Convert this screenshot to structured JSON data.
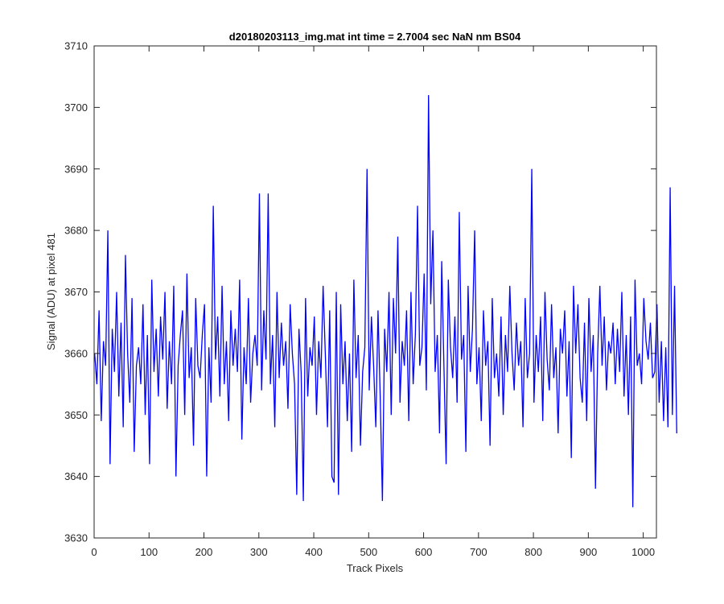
{
  "chart_data": {
    "type": "line",
    "title": "d20180203113_img.mat int time = 2.7004 sec  NaN nm BS04",
    "xlabel": "Track Pixels",
    "ylabel": "Signal (ADU) at pixel 481",
    "xlim": [
      0,
      1024
    ],
    "ylim": [
      3630,
      3710
    ],
    "xticks": [
      0,
      100,
      200,
      300,
      400,
      500,
      600,
      700,
      800,
      900,
      1000
    ],
    "yticks": [
      3630,
      3640,
      3650,
      3660,
      3670,
      3680,
      3690,
      3700,
      3710
    ],
    "grid": false,
    "series": [
      {
        "color": "#0000ff",
        "x_start": 1,
        "x_step": 4,
        "values": [
          3660,
          3655,
          3667,
          3649,
          3662,
          3658,
          3680,
          3642,
          3664,
          3657,
          3670,
          3653,
          3665,
          3648,
          3676,
          3660,
          3652,
          3669,
          3644,
          3658,
          3661,
          3655,
          3668,
          3650,
          3663,
          3642,
          3672,
          3657,
          3664,
          3653,
          3666,
          3659,
          3670,
          3651,
          3662,
          3655,
          3671,
          3640,
          3658,
          3663,
          3667,
          3650,
          3673,
          3656,
          3661,
          3645,
          3669,
          3658,
          3656,
          3663,
          3668,
          3640,
          3661,
          3652,
          3684,
          3659,
          3666,
          3653,
          3671,
          3655,
          3662,
          3649,
          3667,
          3658,
          3664,
          3657,
          3672,
          3646,
          3661,
          3655,
          3669,
          3652,
          3660,
          3663,
          3658,
          3686,
          3654,
          3667,
          3659,
          3686,
          3655,
          3663,
          3648,
          3670,
          3656,
          3665,
          3658,
          3662,
          3651,
          3668,
          3660,
          3655,
          3637,
          3664,
          3657,
          3636,
          3669,
          3653,
          3661,
          3658,
          3666,
          3650,
          3662,
          3656,
          3671,
          3660,
          3648,
          3667,
          3640,
          3639,
          3670,
          3637,
          3668,
          3655,
          3662,
          3649,
          3660,
          3644,
          3672,
          3656,
          3663,
          3645,
          3657,
          3661,
          3690,
          3654,
          3666,
          3658,
          3648,
          3667,
          3653,
          3636,
          3664,
          3657,
          3670,
          3650,
          3669,
          3660,
          3679,
          3652,
          3662,
          3658,
          3667,
          3649,
          3670,
          3655,
          3663,
          3684,
          3658,
          3661,
          3673,
          3654,
          3702,
          3668,
          3680,
          3657,
          3663,
          3647,
          3675,
          3658,
          3642,
          3672,
          3661,
          3656,
          3666,
          3652,
          3683,
          3659,
          3663,
          3644,
          3671,
          3657,
          3664,
          3680,
          3655,
          3661,
          3649,
          3667,
          3658,
          3662,
          3645,
          3669,
          3656,
          3660,
          3653,
          3666,
          3650,
          3663,
          3657,
          3671,
          3660,
          3654,
          3665,
          3658,
          3662,
          3648,
          3669,
          3656,
          3660,
          3690,
          3652,
          3663,
          3657,
          3666,
          3649,
          3670,
          3659,
          3654,
          3668,
          3656,
          3661,
          3647,
          3664,
          3660,
          3667,
          3653,
          3662,
          3643,
          3671,
          3660,
          3668,
          3656,
          3652,
          3665,
          3649,
          3669,
          3657,
          3663,
          3638,
          3660,
          3671,
          3658,
          3666,
          3654,
          3662,
          3660,
          3665,
          3655,
          3664,
          3657,
          3670,
          3653,
          3663,
          3650,
          3666,
          3635,
          3672,
          3658,
          3660,
          3655,
          3669,
          3662,
          3659,
          3665,
          3656,
          3657,
          3668,
          3652,
          3662,
          3649,
          3661,
          3648,
          3687,
          3650,
          3671,
          3647
        ]
      }
    ]
  }
}
